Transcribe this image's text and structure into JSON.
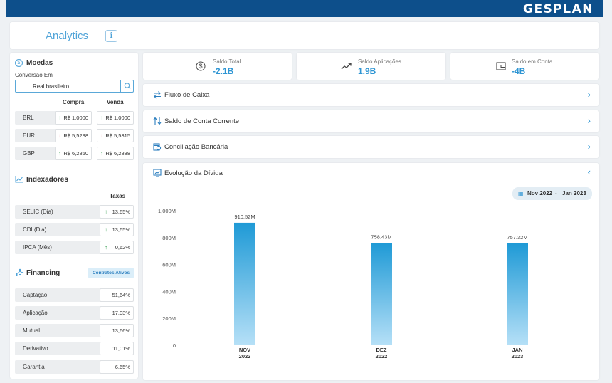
{
  "brand": {
    "logo": "GESPLAN"
  },
  "header": {
    "title": "Analytics",
    "info_icon": "i"
  },
  "moedas": {
    "title": "Moedas",
    "conversion_label": "Conversão Em",
    "conversion_value": "Real brasileiro",
    "col_compra": "Compra",
    "col_venda": "Venda",
    "rows": [
      {
        "code": "BRL",
        "compra": "R$ 1,0000",
        "compra_dir": "up",
        "venda": "R$ 1,0000",
        "venda_dir": "up"
      },
      {
        "code": "EUR",
        "compra": "R$ 5,5288",
        "compra_dir": "down",
        "venda": "R$ 5,5315",
        "venda_dir": "down"
      },
      {
        "code": "GBP",
        "compra": "R$ 6,2860",
        "compra_dir": "up",
        "venda": "R$ 6,2888",
        "venda_dir": "up"
      }
    ]
  },
  "indexadores": {
    "title": "Indexadores",
    "col_taxas": "Taxas",
    "rows": [
      {
        "name": "SELIC (Dia)",
        "value": "13,65%",
        "dir": "up"
      },
      {
        "name": "CDI (Dia)",
        "value": "13,65%",
        "dir": "up"
      },
      {
        "name": "IPCA (Mês)",
        "value": "0,62%",
        "dir": "up"
      }
    ]
  },
  "financing": {
    "title": "Financing",
    "badge": "Contratos Ativos",
    "rows": [
      {
        "name": "Captação",
        "value": "51,64%"
      },
      {
        "name": "Aplicação",
        "value": "17,03%"
      },
      {
        "name": "Mutual",
        "value": "13,66%"
      },
      {
        "name": "Derivativo",
        "value": "11,01%"
      },
      {
        "name": "Garantia",
        "value": "6,65%"
      }
    ]
  },
  "kpis": [
    {
      "label": "Saldo Total",
      "value": "-2.1B",
      "icon": "dollar-icon"
    },
    {
      "label": "Saldo Aplicações",
      "value": "1.9B",
      "icon": "trend-up-icon"
    },
    {
      "label": "Saldo em Conta",
      "value": "-4B",
      "icon": "wallet-icon"
    }
  ],
  "accordions": [
    {
      "label": "Fluxo de Caixa",
      "icon": "swap-icon"
    },
    {
      "label": "Saldo de Conta Corrente",
      "icon": "transfer-icon"
    },
    {
      "label": "Conciliação Bancária",
      "icon": "reconcile-icon"
    }
  ],
  "evolucao": {
    "title": "Evolução da Dívida",
    "date_from": "Nov 2022",
    "date_to": "Jan 2023",
    "date_sep": "-"
  },
  "chart_data": {
    "type": "bar",
    "categories": [
      [
        "NOV",
        "2022"
      ],
      [
        "DEZ",
        "2022"
      ],
      [
        "JAN",
        "2023"
      ]
    ],
    "values": [
      910.52,
      758.43,
      757.32
    ],
    "data_labels": [
      "910.52M",
      "758.43M",
      "757.32M"
    ],
    "y_ticks": [
      "0",
      "200M",
      "400M",
      "600M",
      "800M",
      "1,000M"
    ],
    "ylim": [
      0,
      1000
    ],
    "grid": false,
    "colors": {
      "bar_top": "#1f9ad6",
      "bar_bottom": "#b6e0f7"
    }
  },
  "colors": {
    "brand": "#0d4f8b",
    "accent": "#2e95d3",
    "up": "#2e9a4a",
    "down": "#d9363e"
  }
}
